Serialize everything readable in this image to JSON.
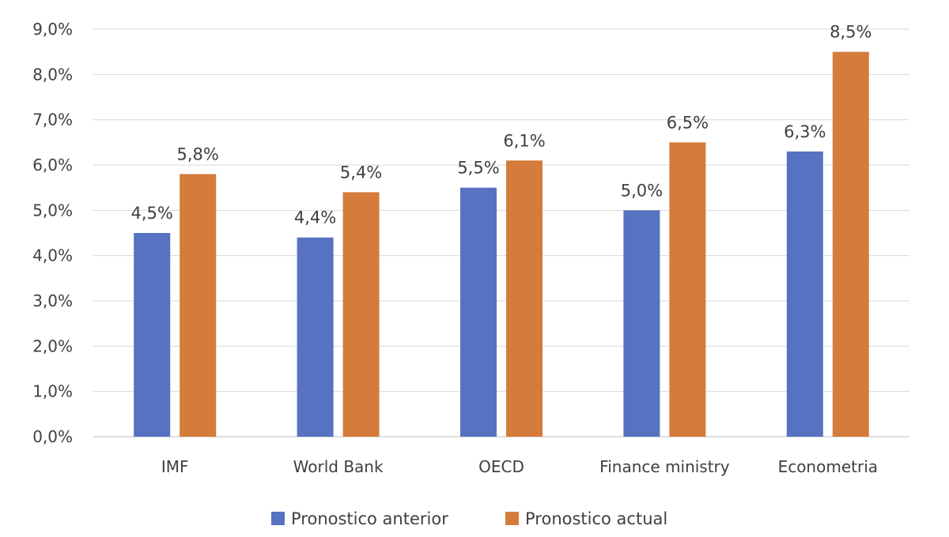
{
  "chart_data": {
    "type": "bar",
    "title": "",
    "xlabel": "",
    "ylabel": "",
    "categories": [
      "IMF",
      "World Bank",
      "OECD",
      "Finance ministry",
      "Econometria"
    ],
    "series": [
      {
        "name": "Pronostico anterior",
        "color": "#5672C1",
        "values": [
          4.5,
          4.4,
          5.5,
          5.0,
          6.3
        ],
        "labels": [
          "4,5%",
          "4,4%",
          "5,5%",
          "5,0%",
          "6,3%"
        ]
      },
      {
        "name": "Pronostico actual",
        "color": "#D57B3B",
        "values": [
          5.8,
          5.4,
          6.1,
          6.5,
          8.5
        ],
        "labels": [
          "5,8%",
          "5,4%",
          "6,1%",
          "6,5%",
          "8,5%"
        ]
      }
    ],
    "ylim": [
      0,
      9
    ],
    "yticks": [
      0,
      1,
      2,
      3,
      4,
      5,
      6,
      7,
      8,
      9
    ],
    "ytick_labels": [
      "0,0%",
      "1,0%",
      "2,0%",
      "3,0%",
      "4,0%",
      "5,0%",
      "6,0%",
      "7,0%",
      "8,0%",
      "9,0%"
    ],
    "grid": true,
    "legend_position": "bottom"
  }
}
